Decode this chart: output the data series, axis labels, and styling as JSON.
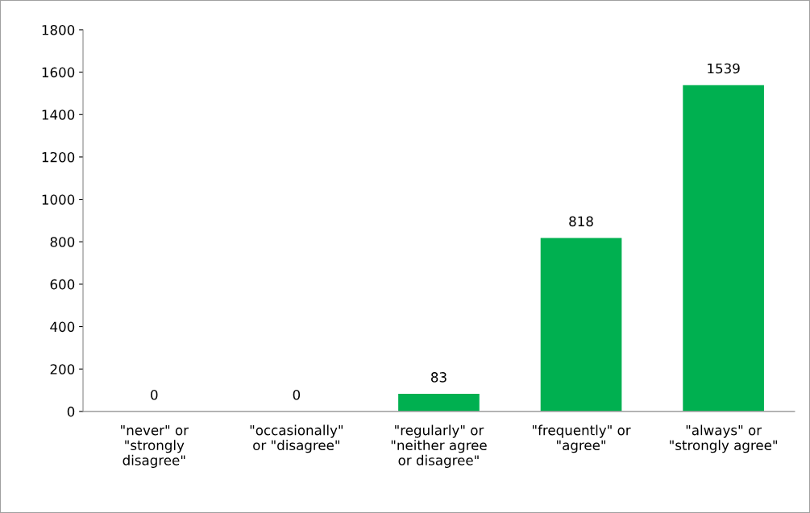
{
  "chart_data": {
    "type": "bar",
    "categories": [
      "\"never\" or\n\"strongly\ndisagree\"",
      "\"occasionally\"\nor \"disagree\"",
      "\"regularly\" or\n\"neither agree\nor disagree\"",
      "\"frequently\" or\n\"agree\"",
      "\"always\" or\n\"strongly agree\""
    ],
    "values": [
      0,
      0,
      83,
      818,
      1539
    ],
    "color": "#00b050",
    "ylim": [
      0,
      1800
    ],
    "yticks": [
      0,
      200,
      400,
      600,
      800,
      1000,
      1200,
      1400,
      1600,
      1800
    ],
    "data_labels": true,
    "grid": false,
    "legend": false
  }
}
